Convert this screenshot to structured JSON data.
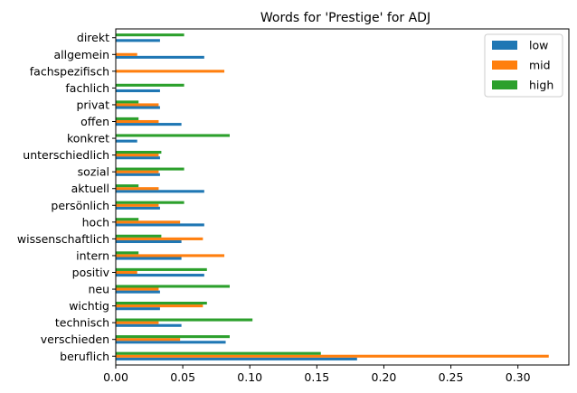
{
  "chart_data": {
    "type": "bar",
    "orientation": "horizontal",
    "title": "Words for 'Prestige' for ADJ",
    "xlabel": "",
    "ylabel": "",
    "xlim": [
      0,
      0.338
    ],
    "xticks": [
      0.0,
      0.05,
      0.1,
      0.15,
      0.2,
      0.25,
      0.3
    ],
    "xtick_labels": [
      "0.00",
      "0.05",
      "0.10",
      "0.15",
      "0.20",
      "0.25",
      "0.30"
    ],
    "grid": false,
    "legend_position": "top-right",
    "categories": [
      "beruflich",
      "verschieden",
      "technisch",
      "wichtig",
      "neu",
      "positiv",
      "intern",
      "wissenschaftlich",
      "hoch",
      "persönlich",
      "aktuell",
      "sozial",
      "unterschiedlich",
      "konkret",
      "offen",
      "privat",
      "fachlich",
      "fachspezifisch",
      "allgemein",
      "direkt"
    ],
    "series": [
      {
        "name": "low",
        "color": "#1f77b4",
        "values": [
          0.18,
          0.082,
          0.049,
          0.033,
          0.033,
          0.066,
          0.049,
          0.049,
          0.066,
          0.033,
          0.066,
          0.033,
          0.033,
          0.016,
          0.049,
          0.033,
          0.033,
          0.0,
          0.066,
          0.033
        ]
      },
      {
        "name": "mid",
        "color": "#ff7f0e",
        "values": [
          0.323,
          0.048,
          0.032,
          0.065,
          0.032,
          0.016,
          0.081,
          0.065,
          0.048,
          0.032,
          0.032,
          0.032,
          0.032,
          0.0,
          0.032,
          0.032,
          0.0,
          0.081,
          0.016,
          0.0
        ]
      },
      {
        "name": "high",
        "color": "#2ca02c",
        "values": [
          0.153,
          0.085,
          0.102,
          0.068,
          0.085,
          0.068,
          0.017,
          0.034,
          0.017,
          0.051,
          0.017,
          0.051,
          0.034,
          0.085,
          0.017,
          0.017,
          0.051,
          0.0,
          0.0,
          0.051
        ]
      }
    ]
  }
}
